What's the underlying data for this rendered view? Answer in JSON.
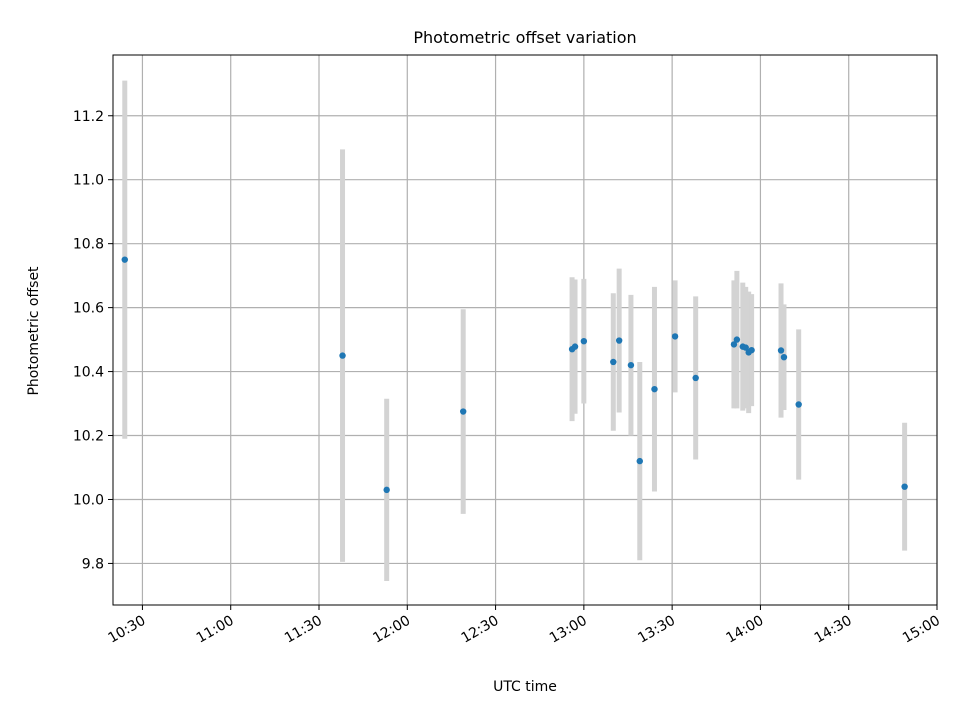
{
  "chart_data": {
    "type": "scatter",
    "title": "Photometric offset variation",
    "xlabel": "UTC time",
    "ylabel": "Photometric offset",
    "grid": true,
    "legend": "none",
    "xlim": [
      "10:20",
      "15:00"
    ],
    "ylim": [
      9.67,
      11.39
    ],
    "x_ticks": [
      "10:30",
      "11:00",
      "11:30",
      "12:00",
      "12:30",
      "13:00",
      "13:30",
      "14:00",
      "14:30",
      "15:00"
    ],
    "y_ticks": [
      9.8,
      10.0,
      10.2,
      10.4,
      10.6,
      10.8,
      11.0,
      11.2
    ],
    "colors": {
      "marker": "#1f77b4",
      "errorbar": "#d3d3d3",
      "grid": "#b0b0b0"
    },
    "points": [
      {
        "x": "10:24",
        "y": 10.75,
        "err": 0.56
      },
      {
        "x": "11:38",
        "y": 10.45,
        "err": 0.645
      },
      {
        "x": "11:53",
        "y": 10.03,
        "err": 0.285
      },
      {
        "x": "12:19",
        "y": 10.275,
        "err": 0.32
      },
      {
        "x": "12:56",
        "y": 10.47,
        "err": 0.225
      },
      {
        "x": "12:57",
        "y": 10.478,
        "err": 0.21
      },
      {
        "x": "13:00",
        "y": 10.495,
        "err": 0.195
      },
      {
        "x": "13:10",
        "y": 10.43,
        "err": 0.215
      },
      {
        "x": "13:12",
        "y": 10.497,
        "err": 0.225
      },
      {
        "x": "13:16",
        "y": 10.42,
        "err": 0.22
      },
      {
        "x": "13:19",
        "y": 10.12,
        "err": 0.31
      },
      {
        "x": "13:24",
        "y": 10.345,
        "err": 0.32
      },
      {
        "x": "13:31",
        "y": 10.51,
        "err": 0.175
      },
      {
        "x": "13:38",
        "y": 10.38,
        "err": 0.255
      },
      {
        "x": "13:51",
        "y": 10.485,
        "err": 0.2
      },
      {
        "x": "13:52",
        "y": 10.5,
        "err": 0.215
      },
      {
        "x": "13:54",
        "y": 10.478,
        "err": 0.2
      },
      {
        "x": "13:55",
        "y": 10.475,
        "err": 0.19
      },
      {
        "x": "13:56",
        "y": 10.46,
        "err": 0.19
      },
      {
        "x": "13:57",
        "y": 10.467,
        "err": 0.175
      },
      {
        "x": "14:07",
        "y": 10.466,
        "err": 0.21
      },
      {
        "x": "14:08",
        "y": 10.445,
        "err": 0.165
      },
      {
        "x": "14:13",
        "y": 10.297,
        "err": 0.235
      },
      {
        "x": "14:49",
        "y": 10.04,
        "err": 0.2
      }
    ]
  }
}
